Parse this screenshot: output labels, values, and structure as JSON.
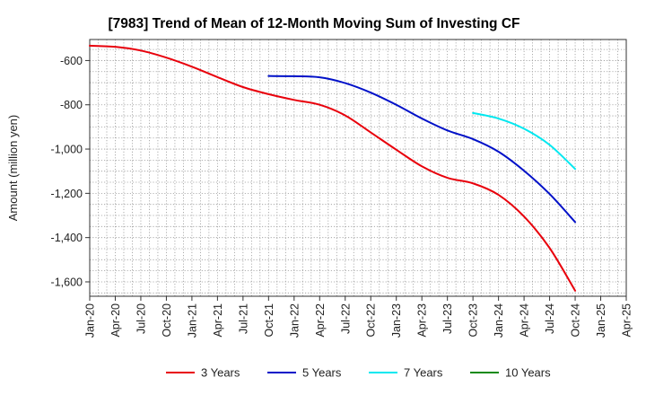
{
  "chart_data": {
    "type": "line",
    "title": "[7983]  Trend of Mean of 12-Month Moving Sum of Investing CF",
    "xlabel": "",
    "ylabel": "Amount (million yen)",
    "ylim": [
      -1665,
      -505
    ],
    "y_ticks": [
      -600,
      -800,
      -1000,
      -1200,
      -1400,
      -1600
    ],
    "y_tick_labels": [
      "-600",
      "-800",
      "-1,000",
      "-1,200",
      "-1,400",
      "-1,600"
    ],
    "x_range_months": [
      0,
      63
    ],
    "x_ticks": [
      {
        "m": 0,
        "label": "Jan-20"
      },
      {
        "m": 3,
        "label": "Apr-20"
      },
      {
        "m": 6,
        "label": "Jul-20"
      },
      {
        "m": 9,
        "label": "Oct-20"
      },
      {
        "m": 12,
        "label": "Jan-21"
      },
      {
        "m": 15,
        "label": "Apr-21"
      },
      {
        "m": 18,
        "label": "Jul-21"
      },
      {
        "m": 21,
        "label": "Oct-21"
      },
      {
        "m": 24,
        "label": "Jan-22"
      },
      {
        "m": 27,
        "label": "Apr-22"
      },
      {
        "m": 30,
        "label": "Jul-22"
      },
      {
        "m": 33,
        "label": "Oct-22"
      },
      {
        "m": 36,
        "label": "Jan-23"
      },
      {
        "m": 39,
        "label": "Apr-23"
      },
      {
        "m": 42,
        "label": "Jul-23"
      },
      {
        "m": 45,
        "label": "Oct-23"
      },
      {
        "m": 48,
        "label": "Jan-24"
      },
      {
        "m": 51,
        "label": "Apr-24"
      },
      {
        "m": 54,
        "label": "Jul-24"
      },
      {
        "m": 57,
        "label": "Oct-24"
      },
      {
        "m": 60,
        "label": "Jan-25"
      },
      {
        "m": 63,
        "label": "Apr-25"
      }
    ],
    "series": [
      {
        "name": "3 Years",
        "color": "#e8000b",
        "x": [
          0,
          3,
          6,
          9,
          12,
          15,
          18,
          21,
          24,
          27,
          30,
          33,
          36,
          39,
          42,
          45,
          48,
          51,
          54,
          57
        ],
        "values": [
          -533,
          -538,
          -555,
          -587,
          -628,
          -675,
          -720,
          -752,
          -778,
          -800,
          -848,
          -925,
          -1003,
          -1078,
          -1130,
          -1155,
          -1207,
          -1305,
          -1447,
          -1640
        ]
      },
      {
        "name": "5 Years",
        "color": "#0010c8",
        "x": [
          21,
          24,
          27,
          30,
          33,
          36,
          39,
          42,
          45,
          48,
          51,
          54,
          57
        ],
        "values": [
          -670,
          -671,
          -676,
          -702,
          -745,
          -800,
          -862,
          -916,
          -955,
          -1012,
          -1098,
          -1203,
          -1330
        ]
      },
      {
        "name": "7 Years",
        "color": "#00e8f0",
        "x": [
          45,
          48,
          51,
          54,
          57
        ],
        "values": [
          -837,
          -862,
          -908,
          -981,
          -1090
        ]
      },
      {
        "name": "10 Years",
        "color": "#108a10",
        "x": [],
        "values": []
      }
    ],
    "legend_position": "bottom",
    "grid": true
  }
}
